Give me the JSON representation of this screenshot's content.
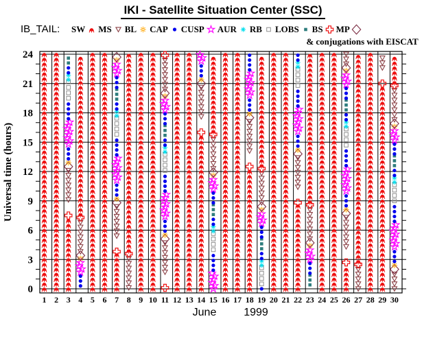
{
  "header": {
    "title": "IKI - Satellite Situation Center (SSC)",
    "dataset_label": "IB_TAIL:",
    "note": "& conjugations with EISCAT"
  },
  "legend": [
    {
      "code": "SW",
      "label": "SW",
      "color": "#ee1111",
      "marker": "sw-crab-icon"
    },
    {
      "code": "MS",
      "label": "MS",
      "color": "#8b4045",
      "marker": "triangle-down-open-icon"
    },
    {
      "code": "BL",
      "label": "BL",
      "color": "#ffa500",
      "marker": "sun-open-icon"
    },
    {
      "code": "CAP",
      "label": "CAP",
      "color": "#0000ee",
      "marker": "dot-filled-icon"
    },
    {
      "code": "CUSP",
      "label": "CUSP",
      "color": "#ff00ff",
      "marker": "star-open-icon"
    },
    {
      "code": "AUR",
      "label": "AUR",
      "color": "#00dfee",
      "marker": "asterisk-icon"
    },
    {
      "code": "RB",
      "label": "RB",
      "color": "#8f8f8f",
      "marker": "square-open-icon"
    },
    {
      "code": "LOBS",
      "label": "LOBS",
      "color": "#2e7d7d",
      "marker": "square-filled-icon"
    },
    {
      "code": "BS",
      "label": "BS",
      "color": "#ee1111",
      "marker": "cross-open-icon"
    },
    {
      "code": "MP",
      "label": "MP",
      "color": "#7d2f45",
      "marker": "diamond-open-icon"
    }
  ],
  "chart_data": {
    "type": "scatter",
    "title": "IKI - Satellite Situation Center (SSC)",
    "ylabel": "Universal time (hours)",
    "xlabel_month": "June",
    "xlabel_year": "1999",
    "y_range": [
      0,
      24
    ],
    "y_ticks": [
      0,
      3,
      6,
      9,
      12,
      15,
      18,
      21,
      24
    ],
    "y_minor_step_hours": 1,
    "x_days": [
      1,
      2,
      3,
      4,
      5,
      6,
      7,
      8,
      9,
      10,
      11,
      12,
      13,
      14,
      15,
      16,
      17,
      18,
      19,
      20,
      21,
      22,
      23,
      24,
      25,
      26,
      27,
      28,
      29,
      30
    ],
    "grid": true,
    "legend_position": "top",
    "days": [
      {
        "day": 1,
        "segments": [
          [
            "SW",
            0,
            24
          ]
        ]
      },
      {
        "day": 2,
        "segments": [
          [
            "SW",
            0,
            24
          ]
        ]
      },
      {
        "day": 3,
        "segments": [
          [
            "SW",
            0,
            7.2
          ],
          [
            "BS",
            7.5
          ],
          [
            "MS",
            9.1,
            12.1
          ],
          [
            "MP",
            12.5
          ],
          [
            "BL",
            12.9
          ],
          [
            "CAP",
            13.3,
            14.6
          ],
          [
            "CUSP",
            14.8,
            17.1
          ],
          [
            "CAP",
            17.4,
            19.3
          ],
          [
            "RB",
            19.5,
            21.2
          ],
          [
            "AUR",
            21.4,
            21.9
          ],
          [
            "CAP",
            22.1,
            22.9
          ],
          [
            "LOBS",
            23.1,
            24
          ]
        ]
      },
      {
        "day": 4,
        "segments": [
          [
            "CAP",
            0.3,
            1.5
          ],
          [
            "CUSP",
            1.7,
            2.8
          ],
          [
            "BL",
            3.1
          ],
          [
            "MP",
            3.4
          ],
          [
            "MS",
            3.8,
            7.0
          ],
          [
            "BS",
            7.3
          ],
          [
            "SW",
            7.6,
            24
          ]
        ]
      },
      {
        "day": 5,
        "segments": [
          [
            "SW",
            0,
            24
          ]
        ]
      },
      {
        "day": 6,
        "segments": [
          [
            "SW",
            0,
            24
          ]
        ]
      },
      {
        "day": 7,
        "segments": [
          [
            "SW",
            0,
            3.6
          ],
          [
            "BS",
            3.8
          ],
          [
            "MS",
            5.4,
            8.4
          ],
          [
            "MP",
            8.8
          ],
          [
            "BL",
            9.2
          ],
          [
            "CAP",
            9.6,
            10.9
          ],
          [
            "CUSP",
            11.1,
            13.4
          ],
          [
            "CAP",
            13.7,
            15.6
          ],
          [
            "RB",
            15.8,
            17.5
          ],
          [
            "AUR",
            17.7,
            18.2
          ],
          [
            "CAP",
            18.4,
            19.2
          ],
          [
            "LOBS",
            19.4,
            20.4
          ],
          [
            "CAP",
            20.6,
            21.8
          ],
          [
            "CUSP",
            22.0,
            23.1
          ],
          [
            "BL",
            23.4
          ],
          [
            "MP",
            23.7
          ]
        ]
      },
      {
        "day": 8,
        "segments": [
          [
            "MS",
            0.1,
            3.3
          ],
          [
            "BS",
            3.6
          ],
          [
            "SW",
            3.9,
            24
          ]
        ]
      },
      {
        "day": 9,
        "segments": [
          [
            "SW",
            0,
            24
          ]
        ]
      },
      {
        "day": 10,
        "segments": [
          [
            "SW",
            0,
            24
          ]
        ]
      },
      {
        "day": 11,
        "segments": [
          [
            "BS",
            0.1
          ],
          [
            "MS",
            1.7,
            4.7
          ],
          [
            "MP",
            5.1
          ],
          [
            "BL",
            5.5
          ],
          [
            "CAP",
            5.9,
            7.2
          ],
          [
            "CUSP",
            7.4,
            9.7
          ],
          [
            "CAP",
            10.0,
            11.9
          ],
          [
            "RB",
            12.1,
            13.8
          ],
          [
            "AUR",
            14.0,
            14.5
          ],
          [
            "CAP",
            14.7,
            15.5
          ],
          [
            "LOBS",
            15.7,
            16.7
          ],
          [
            "CAP",
            16.9,
            18.1
          ],
          [
            "CUSP",
            18.3,
            19.4
          ],
          [
            "BL",
            19.7
          ],
          [
            "MP",
            20.0
          ],
          [
            "MS",
            20.4,
            23.6
          ],
          [
            "BS",
            23.9
          ]
        ]
      },
      {
        "day": 12,
        "segments": [
          [
            "SW",
            0,
            24
          ]
        ]
      },
      {
        "day": 13,
        "segments": [
          [
            "SW",
            0,
            24
          ]
        ]
      },
      {
        "day": 14,
        "segments": [
          [
            "SW",
            0,
            15.7
          ],
          [
            "BS",
            16.0
          ],
          [
            "MS",
            17.6,
            20.6
          ],
          [
            "MP",
            21.0
          ],
          [
            "BL",
            21.4
          ],
          [
            "CAP",
            21.8,
            23.1
          ],
          [
            "CUSP",
            23.3,
            24
          ]
        ]
      },
      {
        "day": 15,
        "segments": [
          [
            "CUSP",
            0,
            1.6
          ],
          [
            "CAP",
            1.9,
            3.8
          ],
          [
            "RB",
            4.0,
            5.7
          ],
          [
            "AUR",
            5.9,
            6.4
          ],
          [
            "CAP",
            6.6,
            7.4
          ],
          [
            "LOBS",
            7.6,
            8.6
          ],
          [
            "CAP",
            8.8,
            10.0
          ],
          [
            "CUSP",
            10.2,
            11.3
          ],
          [
            "BL",
            11.6
          ],
          [
            "MP",
            11.9
          ],
          [
            "MS",
            12.3,
            15.5
          ],
          [
            "BS",
            15.8
          ],
          [
            "SW",
            16.1,
            24
          ]
        ]
      },
      {
        "day": 16,
        "segments": [
          [
            "SW",
            0,
            24
          ]
        ]
      },
      {
        "day": 17,
        "segments": [
          [
            "SW",
            0,
            24
          ]
        ]
      },
      {
        "day": 18,
        "segments": [
          [
            "SW",
            0,
            12.2
          ],
          [
            "BS",
            12.5
          ],
          [
            "MS",
            14.1,
            17.1
          ],
          [
            "MP",
            17.5
          ],
          [
            "BL",
            17.9
          ],
          [
            "CAP",
            18.3,
            19.6
          ],
          [
            "CUSP",
            19.8,
            22.1
          ],
          [
            "CAP",
            22.4,
            24
          ]
        ]
      },
      {
        "day": 19,
        "segments": [
          [
            "CAP",
            0,
            0.3
          ],
          [
            "RB",
            0.5,
            2.2
          ],
          [
            "AUR",
            2.4,
            2.9
          ],
          [
            "CAP",
            3.1,
            3.9
          ],
          [
            "LOBS",
            4.1,
            5.1
          ],
          [
            "CAP",
            5.3,
            6.5
          ],
          [
            "CUSP",
            6.7,
            7.8
          ],
          [
            "BL",
            8.1
          ],
          [
            "MP",
            8.4
          ],
          [
            "MS",
            8.8,
            12.0
          ],
          [
            "BS",
            12.3
          ],
          [
            "SW",
            12.6,
            24
          ]
        ]
      },
      {
        "day": 20,
        "segments": [
          [
            "SW",
            0,
            24
          ]
        ]
      },
      {
        "day": 21,
        "segments": [
          [
            "SW",
            0,
            24
          ]
        ]
      },
      {
        "day": 22,
        "segments": [
          [
            "SW",
            0,
            8.5
          ],
          [
            "BS",
            8.8
          ],
          [
            "MS",
            10.4,
            13.4
          ],
          [
            "MP",
            13.8
          ],
          [
            "BL",
            14.2
          ],
          [
            "CAP",
            14.6,
            15.9
          ],
          [
            "CUSP",
            16.1,
            18.4
          ],
          [
            "CAP",
            18.7,
            20.6
          ],
          [
            "RB",
            20.8,
            22.5
          ],
          [
            "AUR",
            22.7,
            23.2
          ],
          [
            "CAP",
            23.4,
            24
          ]
        ]
      },
      {
        "day": 23,
        "segments": [
          [
            "LOBS",
            0.4,
            1.4
          ],
          [
            "CAP",
            1.6,
            2.8
          ],
          [
            "CUSP",
            3.0,
            4.1
          ],
          [
            "BL",
            4.4
          ],
          [
            "MP",
            4.7
          ],
          [
            "MS",
            5.1,
            8.3
          ],
          [
            "BS",
            8.6
          ],
          [
            "SW",
            8.9,
            24
          ]
        ]
      },
      {
        "day": 24,
        "segments": [
          [
            "SW",
            0,
            24
          ]
        ]
      },
      {
        "day": 25,
        "segments": [
          [
            "SW",
            0,
            24
          ]
        ]
      },
      {
        "day": 26,
        "segments": [
          [
            "SW",
            0,
            2.4
          ],
          [
            "BS",
            2.7
          ],
          [
            "MS",
            4.3,
            7.3
          ],
          [
            "MP",
            7.7
          ],
          [
            "BL",
            8.1
          ],
          [
            "CAP",
            8.5,
            9.8
          ],
          [
            "CUSP",
            10.0,
            12.3
          ],
          [
            "CAP",
            12.6,
            14.5
          ],
          [
            "RB",
            14.7,
            16.4
          ],
          [
            "AUR",
            16.6,
            17.1
          ],
          [
            "CAP",
            17.3,
            18.1
          ],
          [
            "LOBS",
            18.3,
            19.3
          ],
          [
            "CAP",
            19.5,
            20.7
          ],
          [
            "CUSP",
            20.9,
            22.0
          ],
          [
            "BL",
            22.3
          ],
          [
            "MP",
            22.6
          ],
          [
            "MS",
            23.0,
            24
          ]
        ]
      },
      {
        "day": 27,
        "segments": [
          [
            "MS",
            0,
            2.2
          ],
          [
            "BS",
            2.5
          ],
          [
            "SW",
            2.8,
            24
          ]
        ]
      },
      {
        "day": 28,
        "segments": [
          [
            "SW",
            0,
            24
          ]
        ]
      },
      {
        "day": 29,
        "segments": [
          [
            "SW",
            0,
            20.7
          ],
          [
            "BS",
            21.0
          ],
          [
            "MS",
            22.6,
            24
          ]
        ]
      },
      {
        "day": 30,
        "segments": [
          [
            "MS",
            0,
            1.6
          ],
          [
            "MP",
            2.0
          ],
          [
            "BL",
            2.4
          ],
          [
            "CAP",
            2.8,
            4.1
          ],
          [
            "CUSP",
            4.3,
            6.6
          ],
          [
            "CAP",
            6.9,
            8.8
          ],
          [
            "RB",
            9.0,
            10.7
          ],
          [
            "AUR",
            10.9,
            11.4
          ],
          [
            "CAP",
            11.6,
            12.4
          ],
          [
            "LOBS",
            12.6,
            13.6
          ],
          [
            "CAP",
            13.8,
            15.0
          ],
          [
            "CUSP",
            15.2,
            16.3
          ],
          [
            "BL",
            16.6
          ],
          [
            "MP",
            16.9
          ],
          [
            "MS",
            17.3,
            20.5
          ],
          [
            "BS",
            20.8
          ],
          [
            "SW",
            21.1,
            24
          ]
        ]
      }
    ]
  }
}
